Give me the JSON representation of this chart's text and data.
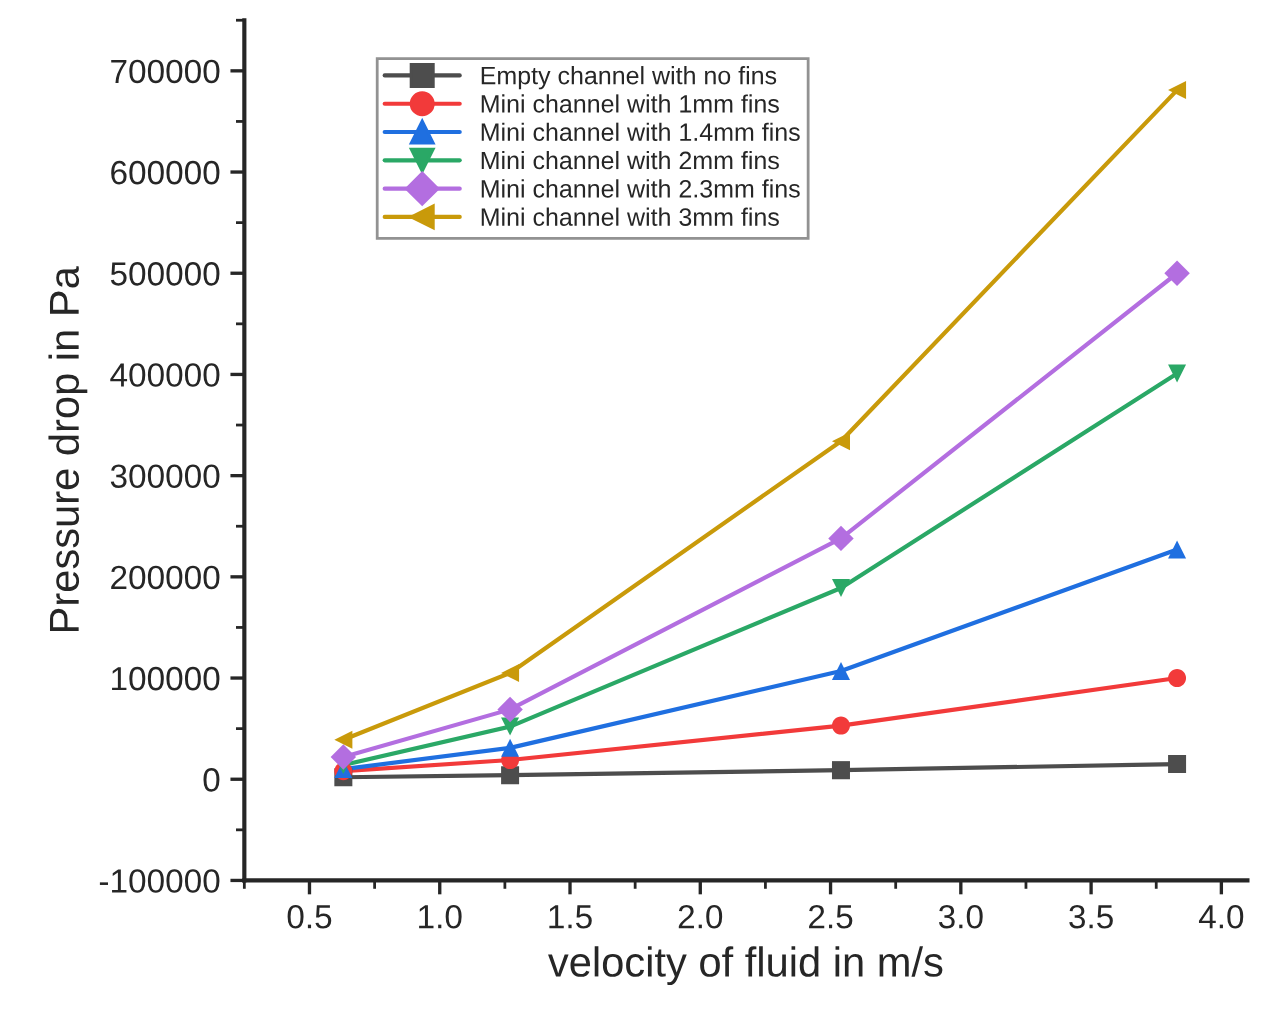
{
  "chart_data": {
    "type": "line",
    "xlabel": "velocity of fluid in m/s",
    "ylabel": "Pressure drop in Pa",
    "x": [
      0.63,
      1.27,
      2.54,
      3.83
    ],
    "xlim": [
      0.25,
      4.1
    ],
    "xticks": [
      {
        "value": 0.5,
        "label": "0.5"
      },
      {
        "value": 1.0,
        "label": "1.0"
      },
      {
        "value": 1.5,
        "label": "1.5"
      },
      {
        "value": 2.0,
        "label": "2.0"
      },
      {
        "value": 2.5,
        "label": "2.5"
      },
      {
        "value": 3.0,
        "label": "3.0"
      },
      {
        "value": 3.5,
        "label": "3.5"
      },
      {
        "value": 4.0,
        "label": "4.0"
      }
    ],
    "ylim": [
      -100000,
      750000
    ],
    "yticks": [
      -100000,
      0,
      100000,
      200000,
      300000,
      400000,
      500000,
      600000,
      700000
    ],
    "grid": false,
    "legend": "top left",
    "series": [
      {
        "name": "Empty channel with no fins",
        "color": "#4d4d4d",
        "marker": "square",
        "values": [
          2000,
          4000,
          9000,
          15000
        ]
      },
      {
        "name": "Mini channel with 1mm fins",
        "color": "#f23a3a",
        "marker": "circle",
        "values": [
          8000,
          19000,
          53000,
          100000
        ]
      },
      {
        "name": "Mini channel with 1.4mm fins",
        "color": "#1f6fe0",
        "marker": "triangle",
        "values": [
          10000,
          31000,
          107000,
          227000
        ]
      },
      {
        "name": "Mini channel with 2mm fins",
        "color": "#2aa866",
        "marker": "triangle_down",
        "values": [
          14000,
          52000,
          189000,
          401000
        ]
      },
      {
        "name": "Mini channel with 2.3mm fins",
        "color": "#b36ee0",
        "marker": "diamond",
        "values": [
          22000,
          69000,
          238000,
          500000
        ]
      },
      {
        "name": "Mini channel with 3mm fins",
        "color": "#c99a0a",
        "marker": "triangle_left",
        "values": [
          39000,
          105000,
          334000,
          681000
        ]
      }
    ]
  }
}
